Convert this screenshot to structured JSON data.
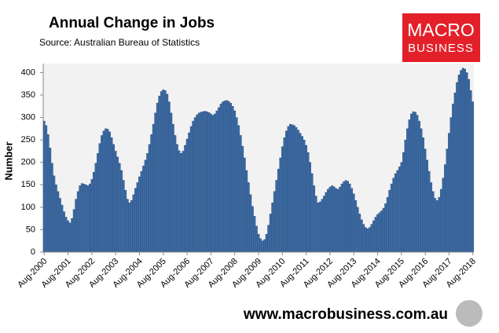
{
  "chart_data": {
    "type": "bar",
    "title": "Annual Change in Jobs",
    "subtitle": "Source: Australian Bureau of Statistics",
    "y_label": "Number",
    "logo_text": [
      "MACRO",
      "BUSINESS"
    ],
    "footer": "www.macrobusiness.com.au",
    "color": "#3b6ba5",
    "ylim": [
      0,
      420
    ],
    "yticks": [
      0,
      50,
      100,
      150,
      200,
      250,
      300,
      350,
      400
    ],
    "grid": false,
    "categories": [
      "Aug-2000",
      null,
      null,
      null,
      null,
      null,
      null,
      null,
      null,
      null,
      null,
      null,
      "Aug-2001",
      null,
      null,
      null,
      null,
      null,
      null,
      null,
      null,
      null,
      null,
      null,
      "Aug-2002",
      null,
      null,
      null,
      null,
      null,
      null,
      null,
      null,
      null,
      null,
      null,
      "Aug-2003",
      null,
      null,
      null,
      null,
      null,
      null,
      null,
      null,
      null,
      null,
      null,
      "Aug-2004",
      null,
      null,
      null,
      null,
      null,
      null,
      null,
      null,
      null,
      null,
      null,
      "Aug-2005",
      null,
      null,
      null,
      null,
      null,
      null,
      null,
      null,
      null,
      null,
      null,
      "Aug-2006",
      null,
      null,
      null,
      null,
      null,
      null,
      null,
      null,
      null,
      null,
      null,
      "Aug-2007",
      null,
      null,
      null,
      null,
      null,
      null,
      null,
      null,
      null,
      null,
      null,
      "Aug-2008",
      null,
      null,
      null,
      null,
      null,
      null,
      null,
      null,
      null,
      null,
      null,
      "Aug-2009",
      null,
      null,
      null,
      null,
      null,
      null,
      null,
      null,
      null,
      null,
      null,
      "Aug-2010",
      null,
      null,
      null,
      null,
      null,
      null,
      null,
      null,
      null,
      null,
      null,
      "Aug-2011",
      null,
      null,
      null,
      null,
      null,
      null,
      null,
      null,
      null,
      null,
      null,
      "Aug-2012",
      null,
      null,
      null,
      null,
      null,
      null,
      null,
      null,
      null,
      null,
      null,
      "Aug-2013",
      null,
      null,
      null,
      null,
      null,
      null,
      null,
      null,
      null,
      null,
      null,
      "Aug-2014",
      null,
      null,
      null,
      null,
      null,
      null,
      null,
      null,
      null,
      null,
      null,
      "Aug-2015",
      null,
      null,
      null,
      null,
      null,
      null,
      null,
      null,
      null,
      null,
      null,
      "Aug-2016",
      null,
      null,
      null,
      null,
      null,
      null,
      null,
      null,
      null,
      null,
      null,
      "Aug-2017",
      null,
      null,
      null,
      null,
      null,
      null,
      null,
      null,
      null,
      null,
      null,
      "Aug-2018"
    ],
    "values": [
      292,
      282,
      262,
      232,
      198,
      170,
      150,
      135,
      120,
      105,
      90,
      78,
      70,
      65,
      75,
      95,
      118,
      135,
      148,
      153,
      152,
      150,
      148,
      152,
      162,
      178,
      198,
      220,
      242,
      260,
      270,
      275,
      274,
      268,
      255,
      240,
      225,
      212,
      198,
      182,
      160,
      138,
      118,
      110,
      115,
      128,
      142,
      155,
      168,
      180,
      192,
      205,
      220,
      240,
      262,
      285,
      310,
      332,
      348,
      358,
      362,
      360,
      352,
      335,
      310,
      285,
      260,
      240,
      226,
      220,
      225,
      238,
      252,
      266,
      280,
      292,
      300,
      306,
      310,
      312,
      313,
      314,
      313,
      311,
      308,
      305,
      308,
      315,
      322,
      330,
      335,
      337,
      338,
      336,
      332,
      325,
      315,
      300,
      282,
      260,
      236,
      210,
      182,
      155,
      128,
      102,
      80,
      58,
      40,
      30,
      25,
      28,
      40,
      60,
      85,
      110,
      135,
      160,
      185,
      210,
      235,
      255,
      270,
      280,
      285,
      284,
      282,
      278,
      272,
      265,
      258,
      250,
      238,
      222,
      200,
      175,
      148,
      125,
      110,
      112,
      118,
      125,
      133,
      140,
      145,
      148,
      146,
      142,
      140,
      145,
      152,
      157,
      160,
      158,
      152,
      142,
      130,
      115,
      100,
      85,
      72,
      62,
      55,
      52,
      55,
      62,
      70,
      78,
      84,
      88,
      92,
      98,
      108,
      122,
      138,
      152,
      165,
      175,
      182,
      190,
      200,
      222,
      250,
      275,
      295,
      308,
      313,
      312,
      305,
      292,
      275,
      255,
      230,
      205,
      180,
      155,
      135,
      120,
      115,
      122,
      140,
      165,
      195,
      230,
      265,
      300,
      330,
      355,
      378,
      395,
      405,
      410,
      408,
      400,
      385,
      360,
      335
    ]
  }
}
